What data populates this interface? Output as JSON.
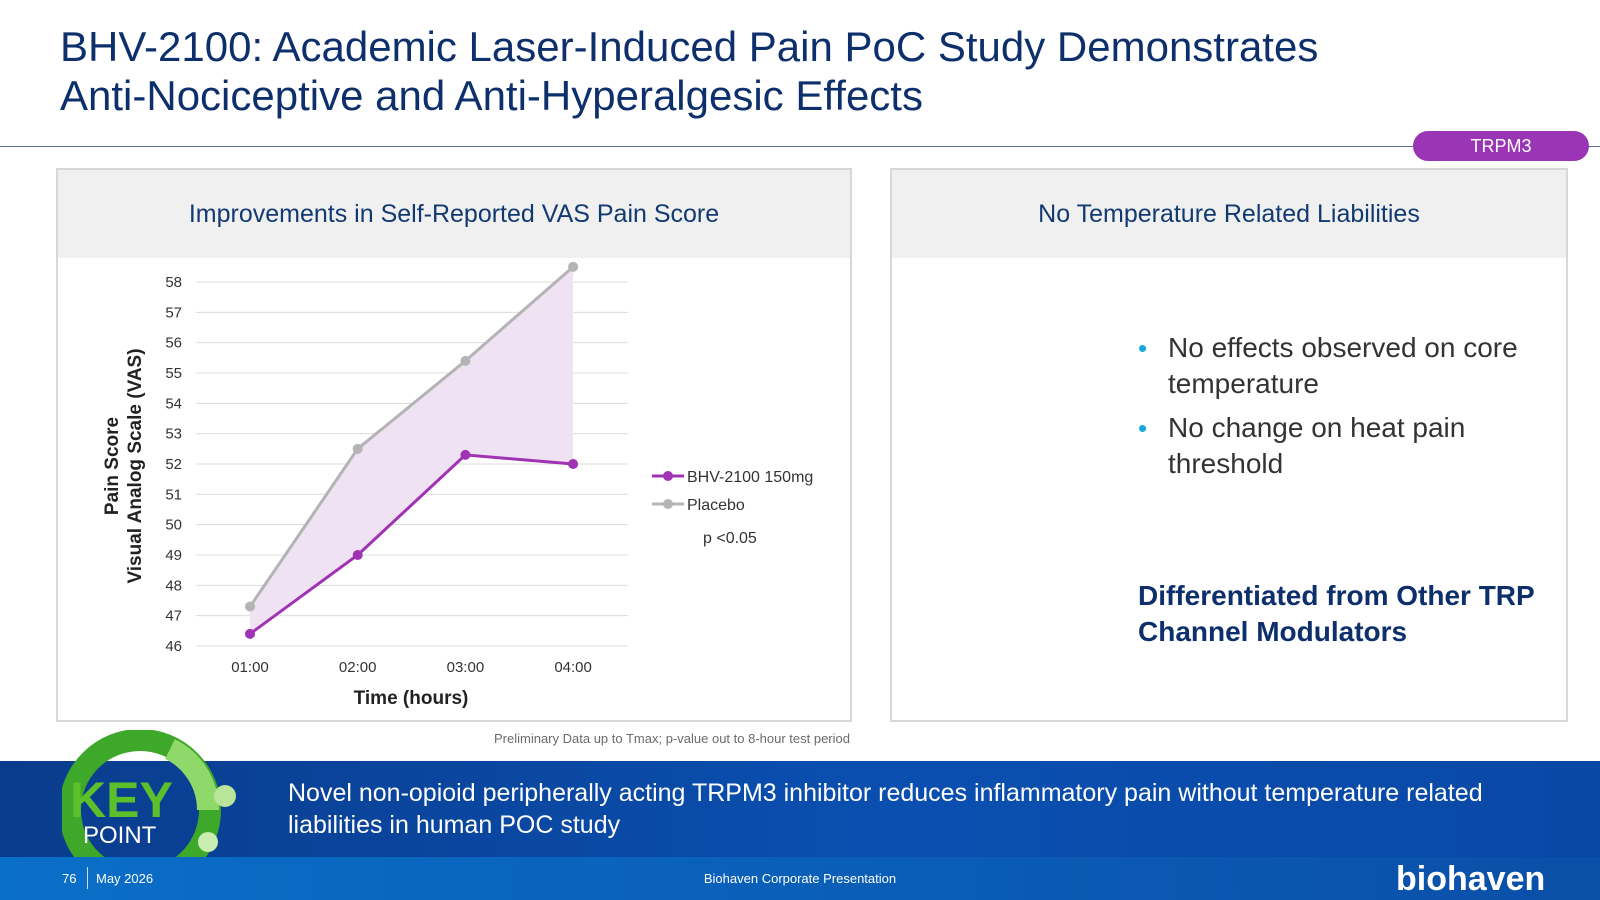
{
  "slide": {
    "title_line1": "BHV-2100: Academic Laser-Induced Pain PoC Study Demonstrates",
    "title_line2": "Anti-Nociceptive and Anti-Hyperalgesic Effects",
    "tag": "TRPM3"
  },
  "left_panel": {
    "heading": "Improvements in Self-Reported VAS Pain Score",
    "footnote": "Preliminary Data up to Tmax; p-value out to 8-hour test period"
  },
  "right_panel": {
    "heading": "No Temperature Related Liabilities",
    "bullets": [
      "No effects observed on core temperature",
      "No change on heat pain threshold"
    ],
    "conclusion": "Differentiated from Other TRP Channel Modulators"
  },
  "key_point": {
    "key": "KEY",
    "point": "POINT",
    "text": "Novel non-opioid peripherally acting TRPM3 inhibitor reduces inflammatory pain without temperature related liabilities in human POC study"
  },
  "footer": {
    "page": "76",
    "date": "May 2026",
    "center": "Biohaven Corporate Presentation",
    "brand": "biohaven"
  },
  "chart_data": {
    "type": "line",
    "title": "",
    "xlabel": "Time (hours)",
    "ylabel_line1": "Pain Score",
    "ylabel_line2": "Visual Analog Scale (VAS)",
    "categories": [
      "01:00",
      "02:00",
      "03:00",
      "04:00"
    ],
    "ylim": [
      46,
      58
    ],
    "yticks": [
      46,
      47,
      48,
      49,
      50,
      51,
      52,
      53,
      54,
      55,
      56,
      57,
      58
    ],
    "grid": true,
    "legend_position": "right",
    "series": [
      {
        "name": "BHV-2100 150mg",
        "color": "#a032b4",
        "values": [
          46.4,
          49.0,
          52.3,
          52.0
        ]
      },
      {
        "name": "Placebo",
        "color": "#b4b4b4",
        "values": [
          47.3,
          52.5,
          55.4,
          58.5
        ]
      }
    ],
    "fill_between_color": "#efe2f3",
    "annotation": "p <0.05"
  },
  "colors": {
    "title": "#0d2f6b",
    "tag": "#9a35b5",
    "bullet_dot": "#1aa7df",
    "key_green": "#5cc02a",
    "key_bar": "#0a4fb0"
  }
}
